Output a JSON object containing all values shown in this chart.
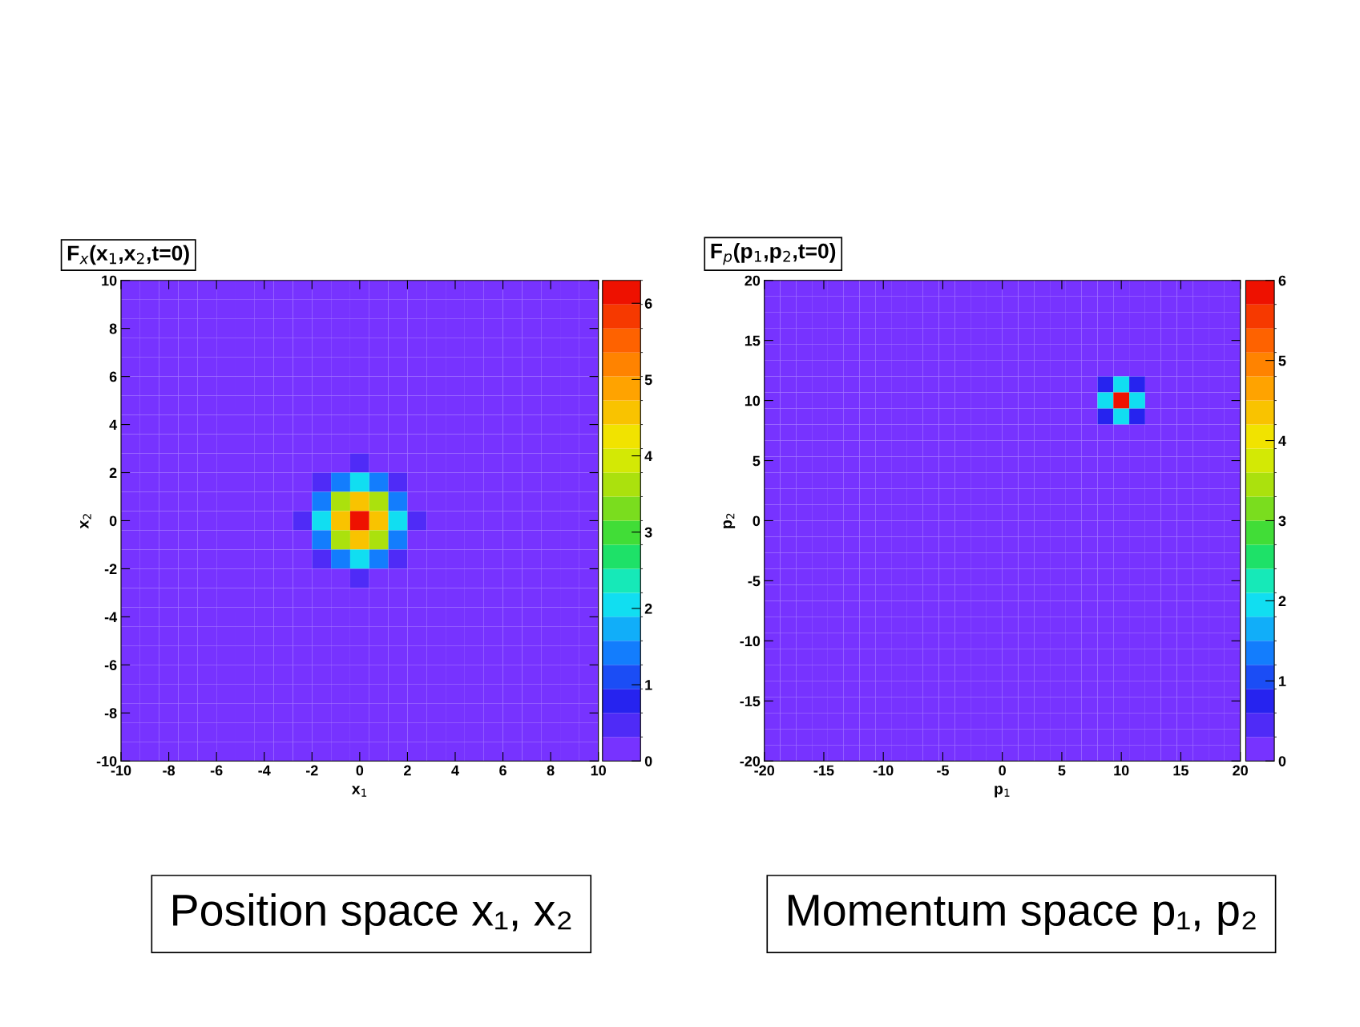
{
  "chart_data": [
    {
      "type": "heatmap",
      "title": "F$_{x}$(x$_{1}$,x$_{2}$,t=0)",
      "xlabel": "x$_{1}$",
      "ylabel": "x$_{2}$",
      "xlim": [
        -10,
        10
      ],
      "ylim": [
        -10,
        10
      ],
      "xticks": [
        -10,
        -8,
        -6,
        -4,
        -2,
        0,
        2,
        4,
        6,
        8,
        10
      ],
      "yticks": [
        -10,
        -8,
        -6,
        -4,
        -2,
        0,
        2,
        4,
        6,
        8,
        10
      ],
      "clim": [
        0,
        6.3
      ],
      "cticks": [
        0,
        1,
        2,
        3,
        4,
        5,
        6
      ],
      "annotations": [
        "Position space x₁, x₂"
      ],
      "cells": [
        [
          0,
          0,
          0,
          0,
          0,
          0,
          0,
          0,
          0,
          0,
          0,
          0,
          0,
          0,
          0,
          0,
          0,
          0,
          0,
          0,
          0,
          0,
          0,
          0,
          0
        ],
        [
          0,
          0,
          0,
          0,
          0,
          0,
          0,
          0,
          0,
          0,
          0,
          0,
          0,
          0,
          0,
          0,
          0,
          0,
          0,
          0,
          0,
          0,
          0,
          0,
          0
        ],
        [
          0,
          0,
          0,
          0,
          0,
          0,
          0,
          0,
          0,
          0,
          0,
          0,
          0,
          0,
          0,
          0,
          0,
          0,
          0,
          0,
          0,
          0,
          0,
          0,
          0
        ],
        [
          0,
          0,
          0,
          0,
          0,
          0,
          0,
          0,
          0,
          0,
          0,
          0,
          0,
          0,
          0,
          0,
          0,
          0,
          0,
          0,
          0,
          0,
          0,
          0,
          0
        ],
        [
          0,
          0,
          0,
          0,
          0,
          0,
          0,
          0,
          0,
          0,
          0,
          0,
          0,
          0,
          0,
          0,
          0,
          0,
          0,
          0,
          0,
          0,
          0,
          0,
          0
        ],
        [
          0,
          0,
          0,
          0,
          0,
          0,
          0,
          0,
          0,
          0,
          0,
          0,
          0,
          0,
          0,
          0,
          0,
          0,
          0,
          0,
          0,
          0,
          0,
          0,
          0
        ],
        [
          0,
          0,
          0,
          0,
          0,
          0,
          0,
          0,
          0,
          0,
          0,
          0,
          0,
          0,
          0,
          0,
          0,
          0,
          0,
          0,
          0,
          0,
          0,
          0,
          0
        ],
        [
          0,
          0,
          0,
          0,
          0,
          0,
          0,
          0,
          0,
          0,
          0,
          0,
          0,
          0,
          0,
          0,
          0,
          0,
          0,
          0,
          0,
          0,
          0,
          0,
          0
        ],
        [
          0,
          0,
          0,
          0,
          0,
          0,
          0,
          0,
          0,
          0,
          0,
          0,
          0,
          0,
          0,
          0,
          0,
          0,
          0,
          0,
          0,
          0,
          0,
          0,
          0
        ],
        [
          0,
          0,
          0,
          0,
          0,
          0,
          0,
          0,
          0,
          0,
          0.1,
          0.3,
          0.4,
          0.3,
          0.1,
          0,
          0,
          0,
          0,
          0,
          0,
          0,
          0,
          0,
          0
        ],
        [
          0,
          0,
          0,
          0,
          0,
          0,
          0,
          0,
          0,
          0.1,
          0.6,
          1.4,
          1.9,
          1.4,
          0.6,
          0.1,
          0,
          0,
          0,
          0,
          0,
          0,
          0,
          0,
          0
        ],
        [
          0,
          0,
          0,
          0,
          0,
          0,
          0,
          0,
          0,
          0.3,
          1.4,
          3.5,
          4.7,
          3.5,
          1.4,
          0.3,
          0,
          0,
          0,
          0,
          0,
          0,
          0,
          0,
          0
        ],
        [
          0,
          0,
          0,
          0,
          0,
          0,
          0,
          0,
          0,
          0.4,
          1.9,
          4.7,
          6.3,
          4.7,
          1.9,
          0.4,
          0,
          0,
          0,
          0,
          0,
          0,
          0,
          0,
          0
        ],
        [
          0,
          0,
          0,
          0,
          0,
          0,
          0,
          0,
          0,
          0.3,
          1.4,
          3.5,
          4.7,
          3.5,
          1.4,
          0.3,
          0,
          0,
          0,
          0,
          0,
          0,
          0,
          0,
          0
        ],
        [
          0,
          0,
          0,
          0,
          0,
          0,
          0,
          0,
          0,
          0.1,
          0.6,
          1.4,
          1.9,
          1.4,
          0.6,
          0.1,
          0,
          0,
          0,
          0,
          0,
          0,
          0,
          0,
          0
        ],
        [
          0,
          0,
          0,
          0,
          0,
          0,
          0,
          0,
          0,
          0,
          0.1,
          0.3,
          0.4,
          0.3,
          0.1,
          0,
          0,
          0,
          0,
          0,
          0,
          0,
          0,
          0,
          0
        ],
        [
          0,
          0,
          0,
          0,
          0,
          0,
          0,
          0,
          0,
          0,
          0,
          0,
          0,
          0,
          0,
          0,
          0,
          0,
          0,
          0,
          0,
          0,
          0,
          0,
          0
        ],
        [
          0,
          0,
          0,
          0,
          0,
          0,
          0,
          0,
          0,
          0,
          0,
          0,
          0,
          0,
          0,
          0,
          0,
          0,
          0,
          0,
          0,
          0,
          0,
          0,
          0
        ],
        [
          0,
          0,
          0,
          0,
          0,
          0,
          0,
          0,
          0,
          0,
          0,
          0,
          0,
          0,
          0,
          0,
          0,
          0,
          0,
          0,
          0,
          0,
          0,
          0,
          0
        ],
        [
          0,
          0,
          0,
          0,
          0,
          0,
          0,
          0,
          0,
          0,
          0,
          0,
          0,
          0,
          0,
          0,
          0,
          0,
          0,
          0,
          0,
          0,
          0,
          0,
          0
        ],
        [
          0,
          0,
          0,
          0,
          0,
          0,
          0,
          0,
          0,
          0,
          0,
          0,
          0,
          0,
          0,
          0,
          0,
          0,
          0,
          0,
          0,
          0,
          0,
          0,
          0
        ],
        [
          0,
          0,
          0,
          0,
          0,
          0,
          0,
          0,
          0,
          0,
          0,
          0,
          0,
          0,
          0,
          0,
          0,
          0,
          0,
          0,
          0,
          0,
          0,
          0,
          0
        ],
        [
          0,
          0,
          0,
          0,
          0,
          0,
          0,
          0,
          0,
          0,
          0,
          0,
          0,
          0,
          0,
          0,
          0,
          0,
          0,
          0,
          0,
          0,
          0,
          0,
          0
        ],
        [
          0,
          0,
          0,
          0,
          0,
          0,
          0,
          0,
          0,
          0,
          0,
          0,
          0,
          0,
          0,
          0,
          0,
          0,
          0,
          0,
          0,
          0,
          0,
          0,
          0
        ],
        [
          0,
          0,
          0,
          0,
          0,
          0,
          0,
          0,
          0,
          0,
          0,
          0,
          0,
          0,
          0,
          0,
          0,
          0,
          0,
          0,
          0,
          0,
          0,
          0,
          0
        ]
      ]
    },
    {
      "type": "heatmap",
      "title": "F$_{p}$(p$_{1}$,p$_{2}$,t=0)",
      "xlabel": "p$_{1}$",
      "ylabel": "p$_{2}$",
      "xlim": [
        -20,
        20
      ],
      "ylim": [
        -20,
        20
      ],
      "xticks": [
        -20,
        -15,
        -10,
        -5,
        0,
        5,
        10,
        15,
        20
      ],
      "yticks": [
        -20,
        -15,
        -10,
        -5,
        0,
        5,
        10,
        15,
        20
      ],
      "clim": [
        0,
        6
      ],
      "cticks": [
        0,
        1,
        2,
        3,
        4,
        5,
        6
      ],
      "annotations": [
        "Momentum space p₁, p₂"
      ],
      "cells": [
        [
          0,
          0,
          0,
          0,
          0,
          0,
          0,
          0,
          0,
          0,
          0,
          0,
          0,
          0,
          0,
          0,
          0,
          0,
          0,
          0,
          0,
          0,
          0,
          0,
          0,
          0,
          0,
          0,
          0,
          0
        ],
        [
          0,
          0,
          0,
          0,
          0,
          0,
          0,
          0,
          0,
          0,
          0,
          0,
          0,
          0,
          0,
          0,
          0,
          0,
          0,
          0,
          0,
          0,
          0,
          0,
          0,
          0,
          0,
          0,
          0,
          0
        ],
        [
          0,
          0,
          0,
          0,
          0,
          0,
          0,
          0,
          0,
          0,
          0,
          0,
          0,
          0,
          0,
          0,
          0,
          0,
          0,
          0,
          0,
          0,
          0,
          0,
          0,
          0,
          0,
          0,
          0,
          0
        ],
        [
          0,
          0,
          0,
          0,
          0,
          0,
          0,
          0,
          0,
          0,
          0,
          0,
          0,
          0,
          0,
          0,
          0,
          0,
          0,
          0,
          0,
          0,
          0,
          0,
          0,
          0,
          0,
          0,
          0,
          0
        ],
        [
          0,
          0,
          0,
          0,
          0,
          0,
          0,
          0,
          0,
          0,
          0,
          0,
          0,
          0,
          0,
          0,
          0,
          0,
          0,
          0,
          0,
          0,
          0,
          0,
          0,
          0,
          0,
          0,
          0,
          0
        ],
        [
          0,
          0,
          0,
          0,
          0,
          0,
          0,
          0,
          0,
          0,
          0,
          0,
          0,
          0,
          0,
          0,
          0,
          0,
          0,
          0,
          0,
          0,
          0.1,
          0,
          0,
          0,
          0,
          0,
          0,
          0
        ],
        [
          0,
          0,
          0,
          0,
          0,
          0,
          0,
          0,
          0,
          0,
          0,
          0,
          0,
          0,
          0,
          0,
          0,
          0,
          0,
          0,
          0,
          0.7,
          2.0,
          0.7,
          0,
          0,
          0,
          0,
          0,
          0
        ],
        [
          0,
          0,
          0,
          0,
          0,
          0,
          0,
          0,
          0,
          0,
          0,
          0,
          0,
          0,
          0,
          0,
          0,
          0,
          0,
          0,
          0.1,
          2.0,
          6.0,
          2.0,
          0.1,
          0,
          0,
          0,
          0,
          0
        ],
        [
          0,
          0,
          0,
          0,
          0,
          0,
          0,
          0,
          0,
          0,
          0,
          0,
          0,
          0,
          0,
          0,
          0,
          0,
          0,
          0,
          0,
          0.7,
          2.0,
          0.7,
          0,
          0,
          0,
          0,
          0,
          0
        ],
        [
          0,
          0,
          0,
          0,
          0,
          0,
          0,
          0,
          0,
          0,
          0,
          0,
          0,
          0,
          0,
          0,
          0,
          0,
          0,
          0,
          0,
          0,
          0.1,
          0,
          0,
          0,
          0,
          0,
          0,
          0
        ],
        [
          0,
          0,
          0,
          0,
          0,
          0,
          0,
          0,
          0,
          0,
          0,
          0,
          0,
          0,
          0,
          0,
          0,
          0,
          0,
          0,
          0,
          0,
          0,
          0,
          0,
          0,
          0,
          0,
          0,
          0
        ],
        [
          0,
          0,
          0,
          0,
          0,
          0,
          0,
          0,
          0,
          0,
          0,
          0,
          0,
          0,
          0,
          0,
          0,
          0,
          0,
          0,
          0,
          0,
          0,
          0,
          0,
          0,
          0,
          0,
          0,
          0
        ],
        [
          0,
          0,
          0,
          0,
          0,
          0,
          0,
          0,
          0,
          0,
          0,
          0,
          0,
          0,
          0,
          0,
          0,
          0,
          0,
          0,
          0,
          0,
          0,
          0,
          0,
          0,
          0,
          0,
          0,
          0
        ],
        [
          0,
          0,
          0,
          0,
          0,
          0,
          0,
          0,
          0,
          0,
          0,
          0,
          0,
          0,
          0,
          0,
          0,
          0,
          0,
          0,
          0,
          0,
          0,
          0,
          0,
          0,
          0,
          0,
          0,
          0
        ],
        [
          0,
          0,
          0,
          0,
          0,
          0,
          0,
          0,
          0,
          0,
          0,
          0,
          0,
          0,
          0,
          0,
          0,
          0,
          0,
          0,
          0,
          0,
          0,
          0,
          0,
          0,
          0,
          0,
          0,
          0
        ],
        [
          0,
          0,
          0,
          0,
          0,
          0,
          0,
          0,
          0,
          0,
          0,
          0,
          0,
          0,
          0,
          0,
          0,
          0,
          0,
          0,
          0,
          0,
          0,
          0,
          0,
          0,
          0,
          0,
          0,
          0
        ],
        [
          0,
          0,
          0,
          0,
          0,
          0,
          0,
          0,
          0,
          0,
          0,
          0,
          0,
          0,
          0,
          0,
          0,
          0,
          0,
          0,
          0,
          0,
          0,
          0,
          0,
          0,
          0,
          0,
          0,
          0
        ],
        [
          0,
          0,
          0,
          0,
          0,
          0,
          0,
          0,
          0,
          0,
          0,
          0,
          0,
          0,
          0,
          0,
          0,
          0,
          0,
          0,
          0,
          0,
          0,
          0,
          0,
          0,
          0,
          0,
          0,
          0
        ],
        [
          0,
          0,
          0,
          0,
          0,
          0,
          0,
          0,
          0,
          0,
          0,
          0,
          0,
          0,
          0,
          0,
          0,
          0,
          0,
          0,
          0,
          0,
          0,
          0,
          0,
          0,
          0,
          0,
          0,
          0
        ],
        [
          0,
          0,
          0,
          0,
          0,
          0,
          0,
          0,
          0,
          0,
          0,
          0,
          0,
          0,
          0,
          0,
          0,
          0,
          0,
          0,
          0,
          0,
          0,
          0,
          0,
          0,
          0,
          0,
          0,
          0
        ],
        [
          0,
          0,
          0,
          0,
          0,
          0,
          0,
          0,
          0,
          0,
          0,
          0,
          0,
          0,
          0,
          0,
          0,
          0,
          0,
          0,
          0,
          0,
          0,
          0,
          0,
          0,
          0,
          0,
          0,
          0
        ],
        [
          0,
          0,
          0,
          0,
          0,
          0,
          0,
          0,
          0,
          0,
          0,
          0,
          0,
          0,
          0,
          0,
          0,
          0,
          0,
          0,
          0,
          0,
          0,
          0,
          0,
          0,
          0,
          0,
          0,
          0
        ],
        [
          0,
          0,
          0,
          0,
          0,
          0,
          0,
          0,
          0,
          0,
          0,
          0,
          0,
          0,
          0,
          0,
          0,
          0,
          0,
          0,
          0,
          0,
          0,
          0,
          0,
          0,
          0,
          0,
          0,
          0
        ],
        [
          0,
          0,
          0,
          0,
          0,
          0,
          0,
          0,
          0,
          0,
          0,
          0,
          0,
          0,
          0,
          0,
          0,
          0,
          0,
          0,
          0,
          0,
          0,
          0,
          0,
          0,
          0,
          0,
          0,
          0
        ],
        [
          0,
          0,
          0,
          0,
          0,
          0,
          0,
          0,
          0,
          0,
          0,
          0,
          0,
          0,
          0,
          0,
          0,
          0,
          0,
          0,
          0,
          0,
          0,
          0,
          0,
          0,
          0,
          0,
          0,
          0
        ],
        [
          0,
          0,
          0,
          0,
          0,
          0,
          0,
          0,
          0,
          0,
          0,
          0,
          0,
          0,
          0,
          0,
          0,
          0,
          0,
          0,
          0,
          0,
          0,
          0,
          0,
          0,
          0,
          0,
          0,
          0
        ],
        [
          0,
          0,
          0,
          0,
          0,
          0,
          0,
          0,
          0,
          0,
          0,
          0,
          0,
          0,
          0,
          0,
          0,
          0,
          0,
          0,
          0,
          0,
          0,
          0,
          0,
          0,
          0,
          0,
          0,
          0
        ],
        [
          0,
          0,
          0,
          0,
          0,
          0,
          0,
          0,
          0,
          0,
          0,
          0,
          0,
          0,
          0,
          0,
          0,
          0,
          0,
          0,
          0,
          0,
          0,
          0,
          0,
          0,
          0,
          0,
          0,
          0
        ],
        [
          0,
          0,
          0,
          0,
          0,
          0,
          0,
          0,
          0,
          0,
          0,
          0,
          0,
          0,
          0,
          0,
          0,
          0,
          0,
          0,
          0,
          0,
          0,
          0,
          0,
          0,
          0,
          0,
          0,
          0
        ],
        [
          0,
          0,
          0,
          0,
          0,
          0,
          0,
          0,
          0,
          0,
          0,
          0,
          0,
          0,
          0,
          0,
          0,
          0,
          0,
          0,
          0,
          0,
          0,
          0,
          0,
          0,
          0,
          0,
          0,
          0
        ]
      ]
    }
  ]
}
